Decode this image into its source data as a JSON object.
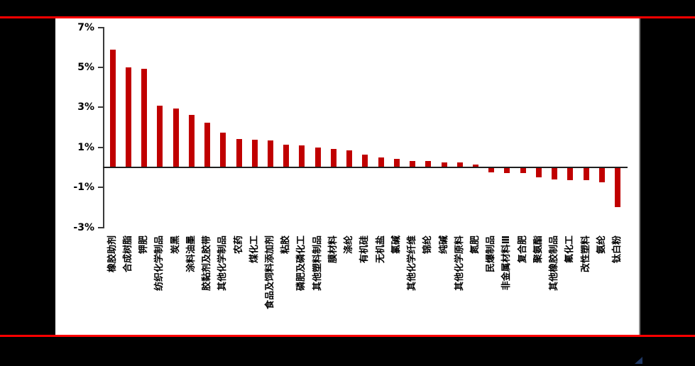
{
  "page": {
    "background_color": "#000000",
    "panel_color": "#ffffff",
    "top_line_color": "#fe0000",
    "bottom_line_color": "#fe0000",
    "panel_edge_color": "#8c8c8c",
    "corner_triangle_color": "#1f3864"
  },
  "chart_data": {
    "type": "bar",
    "title": "",
    "bar_color": "#c00000",
    "axis_color": "#3a3a3a",
    "grid": false,
    "legend": false,
    "ylim": [
      -3,
      7
    ],
    "y_tick_labels": [
      "7%",
      "5%",
      "3%",
      "1%",
      "-1%",
      "-3%"
    ],
    "y_tick_values": [
      7,
      5,
      3,
      1,
      -1,
      -3
    ],
    "categories": [
      "橡胶助剂",
      "合成树脂",
      "钾肥",
      "纺织化学制品",
      "炭黑",
      "涂料油墨",
      "胶黏剂及胶带",
      "其他化学制品",
      "农药",
      "煤化工",
      "食品及饲料添加剂",
      "粘胶",
      "磷肥及磷化工",
      "其他塑料制品",
      "膜材料",
      "涤纶",
      "有机硅",
      "无机盐",
      "氯碱",
      "其他化学纤维",
      "锦纶",
      "纯碱",
      "其他化学原料",
      "氮肥",
      "民爆制品",
      "非金属材料Ⅲ",
      "复合肥",
      "聚氨酯",
      "其他橡胶制品",
      "氟化工",
      "改性塑料",
      "氨纶",
      "钛白粉"
    ],
    "values": [
      5.85,
      4.95,
      4.9,
      3.05,
      2.9,
      2.6,
      2.2,
      1.7,
      1.4,
      1.35,
      1.3,
      1.1,
      1.05,
      0.95,
      0.9,
      0.8,
      0.6,
      0.45,
      0.4,
      0.3,
      0.28,
      0.22,
      0.22,
      0.1,
      -0.2,
      -0.25,
      -0.25,
      -0.45,
      -0.55,
      -0.6,
      -0.6,
      -0.7,
      -1.95
    ]
  }
}
